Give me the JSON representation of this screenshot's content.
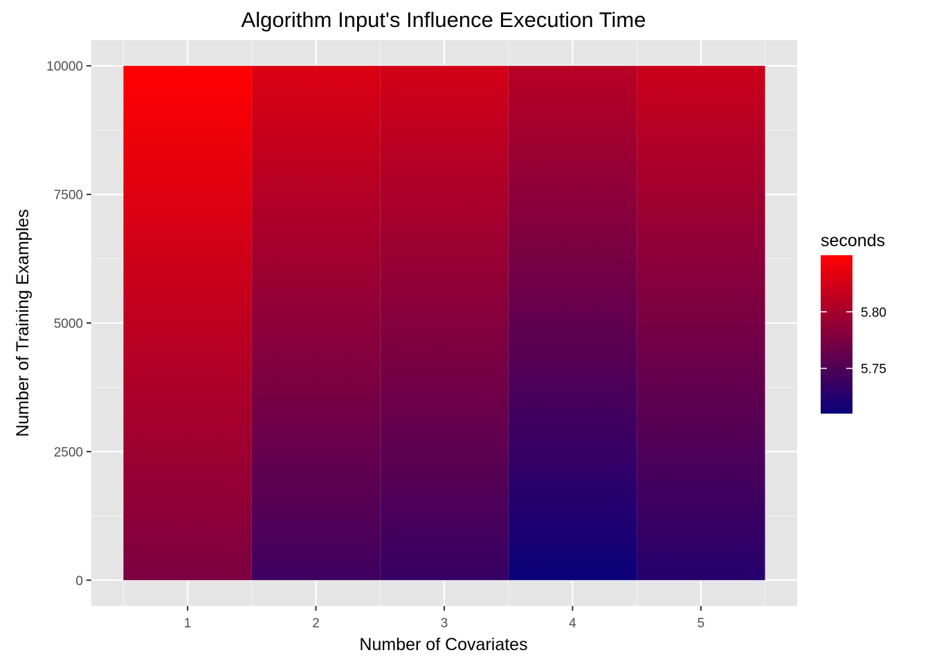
{
  "chart_data": {
    "type": "heatmap",
    "title": "Algorithm Input's Influence Execution Time",
    "xlabel": "Number of Covariates",
    "ylabel": "Number of Training Examples",
    "x_categories": [
      1,
      2,
      3,
      4,
      5
    ],
    "x_tick_labels": [
      "1",
      "2",
      "3",
      "4",
      "5"
    ],
    "y_ticks": [
      0,
      2500,
      5000,
      7500,
      10000
    ],
    "y_tick_labels": [
      "0",
      "2500",
      "5000",
      "7500",
      "10000"
    ],
    "xlim": [
      0.25,
      5.75
    ],
    "ylim": [
      -500,
      10500
    ],
    "y_extent": [
      0,
      10000
    ],
    "grid": true,
    "legend": {
      "title": "seconds",
      "placement": "right",
      "ticks": [
        5.75,
        5.8
      ],
      "tick_labels": [
        "5.75",
        "5.80"
      ],
      "range": [
        5.71,
        5.85
      ],
      "low_color": "#0a007a",
      "high_color": "#ff0000"
    },
    "series": [
      {
        "x": 1,
        "y": [
          0,
          10000
        ],
        "seconds": [
          5.775,
          5.85
        ]
      },
      {
        "x": 2,
        "y": [
          0,
          10000
        ],
        "seconds": [
          5.74,
          5.83
        ]
      },
      {
        "x": 3,
        "y": [
          0,
          10000
        ],
        "seconds": [
          5.735,
          5.825
        ]
      },
      {
        "x": 4,
        "y": [
          0,
          10000
        ],
        "seconds": [
          5.71,
          5.81
        ]
      },
      {
        "x": 5,
        "y": [
          0,
          10000
        ],
        "seconds": [
          5.725,
          5.82
        ]
      }
    ],
    "colors": {
      "panel_background": "#e5e5e5",
      "grid_major": "#ffffff",
      "grid_minor": "#f2f2f2",
      "tick_text": "#4d4d4d"
    }
  }
}
